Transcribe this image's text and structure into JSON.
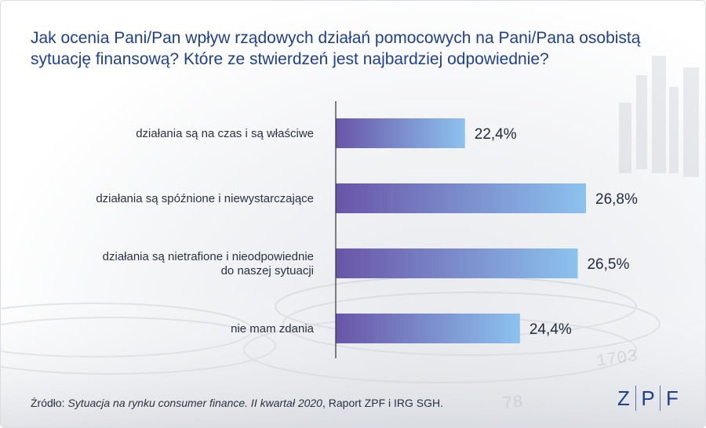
{
  "title": "Jak ocenia Pani/Pan wpływ rządowych działań pomocowych na Pani/Pana osobistą sytuację finansową? Które ze stwierdzeń jest najbardziej odpowiednie?",
  "source": {
    "prefix": "Źródło: ",
    "italic": "Sytuacja na rynku consumer finance. II kwartał 2020",
    "suffix": ", Raport ZPF i IRG SGH."
  },
  "logo": {
    "letters": [
      "Z",
      "P",
      "F"
    ],
    "color": "#1f3f8f"
  },
  "colors": {
    "bar_start": "#6a55a8",
    "bar_end": "#8cc2ee",
    "axis": "#333333"
  },
  "chart_data": {
    "type": "bar",
    "orientation": "horizontal",
    "categories": [
      [
        "działania są na czas i są właściwe"
      ],
      [
        "działania są spóźnione i niewystarczające"
      ],
      [
        "działania są nietrafione i nieodpowiednie",
        "do naszej sytuacji"
      ],
      [
        "nie mam zdania"
      ]
    ],
    "values": [
      22.4,
      26.8,
      26.5,
      24.4
    ],
    "value_labels": [
      "22,4%",
      "26,8%",
      "26,5%",
      "24,4%"
    ],
    "xlim": [
      17.7,
      26.8
    ],
    "unit": "%",
    "grid": false,
    "legend": "none"
  }
}
